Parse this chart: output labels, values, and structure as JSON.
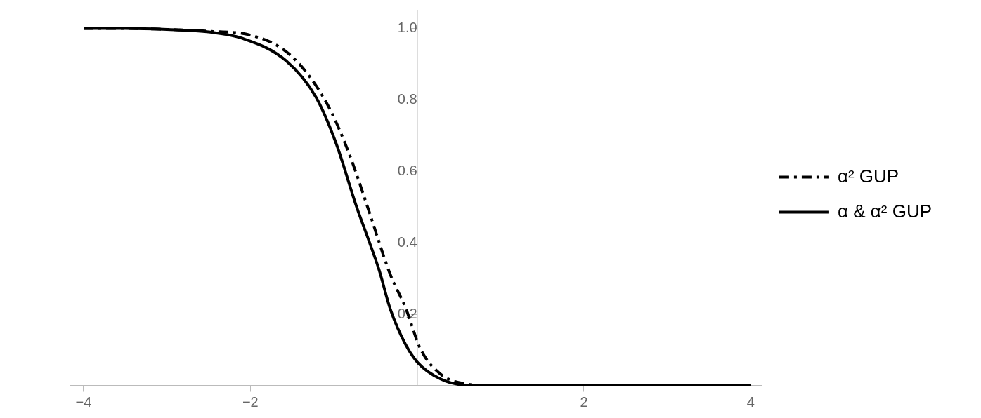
{
  "chart_data": {
    "type": "line",
    "xlim": [
      -4.16,
      4.14
    ],
    "ylim": [
      0,
      1.05
    ],
    "xticks": [
      {
        "value": -4,
        "label": "−4"
      },
      {
        "value": -2,
        "label": "−2"
      },
      2,
      4
    ],
    "yticks": [
      0.2,
      0.4,
      0.6,
      0.8,
      {
        "value": 1,
        "label": "1.0"
      }
    ],
    "legend": "right",
    "marker": "none",
    "grid": false,
    "series": [
      {
        "name": "α² GUP",
        "color": "#000000",
        "line_style": "dashed",
        "x": [
          -4,
          -3.5,
          -3,
          -2.5,
          -1.98,
          -1.51,
          -1.09,
          -0.82,
          -0.59,
          -0.32,
          -0.14,
          0.04,
          0.28,
          0.57,
          1,
          2,
          3,
          4
        ],
        "values": [
          1.0,
          1.0,
          0.997,
          0.992,
          0.98,
          0.923,
          0.793,
          0.652,
          0.497,
          0.31,
          0.219,
          0.103,
          0.033,
          0.006,
          0.0,
          0.0,
          0.0,
          0.0
        ]
      },
      {
        "name": "α & α² GUP",
        "color": "#000000",
        "line_style": "solid",
        "x": [
          -4,
          -3.5,
          -3,
          -2.5,
          -2.11,
          -1.57,
          -1.21,
          -0.97,
          -0.73,
          -0.57,
          -0.455,
          -0.32,
          -0.14,
          0.01,
          0.28,
          0.57,
          1,
          2,
          3,
          4
        ],
        "values": [
          1.0,
          1.0,
          0.997,
          0.99,
          0.973,
          0.909,
          0.806,
          0.677,
          0.503,
          0.4,
          0.323,
          0.213,
          0.116,
          0.064,
          0.019,
          0.002,
          0.0,
          0.0,
          0.0,
          0.0
        ]
      }
    ]
  }
}
